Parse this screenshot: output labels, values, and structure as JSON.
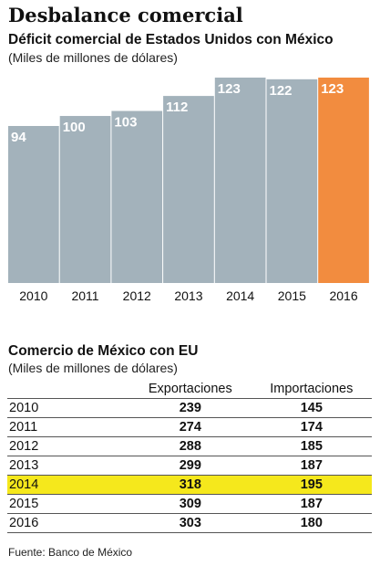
{
  "header": {
    "title": "Desbalance comercial"
  },
  "chart_data": {
    "type": "bar",
    "title": "Déficit comercial de Estados Unidos con México",
    "subtitle": "(Miles de millones de dólares)",
    "categories": [
      "2010",
      "2011",
      "2012",
      "2013",
      "2014",
      "2015",
      "2016"
    ],
    "values": [
      94,
      100,
      103,
      112,
      123,
      122,
      123
    ],
    "ylim": [
      0,
      123
    ],
    "grid": false,
    "colors": {
      "bar": "#a3b2bb",
      "highlight": "#f28c3f",
      "label": "#ffffff"
    },
    "highlight_index": 6
  },
  "table": {
    "title": "Comercio de México con EU",
    "subtitle": "(Miles de millones de dólares)",
    "headers": [
      "Exportaciones",
      "Importaciones"
    ],
    "rows": [
      {
        "year": "2010",
        "exports": "239",
        "imports": "145"
      },
      {
        "year": "2011",
        "exports": "274",
        "imports": "174"
      },
      {
        "year": "2012",
        "exports": "288",
        "imports": "185"
      },
      {
        "year": "2013",
        "exports": "299",
        "imports": "187"
      },
      {
        "year": "2014",
        "exports": "318",
        "imports": "195"
      },
      {
        "year": "2015",
        "exports": "309",
        "imports": "187"
      },
      {
        "year": "2016",
        "exports": "303",
        "imports": "180"
      }
    ],
    "highlight_year": "2014",
    "highlight_color": "#f5e81c"
  },
  "footer": {
    "source": "Fuente: Banco de México"
  }
}
